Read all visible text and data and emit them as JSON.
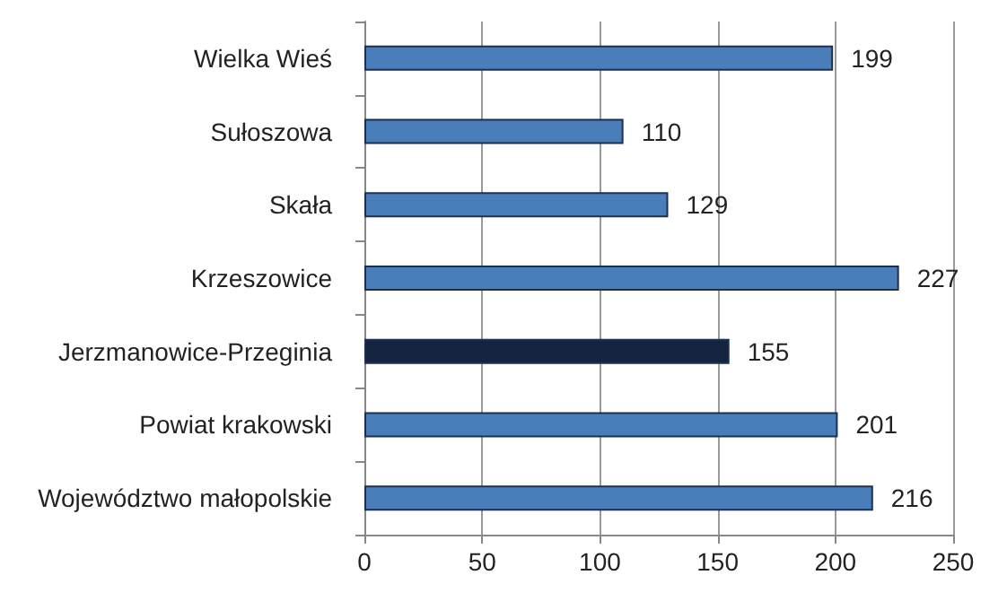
{
  "chart_data": {
    "type": "bar",
    "orientation": "horizontal",
    "categories": [
      "Wielka Wieś",
      "Sułoszowa",
      "Skała",
      "Krzeszowice",
      "Jerzmanowice-Przeginia",
      "Powiat krakowski",
      "Województwo małopolskie"
    ],
    "values": [
      199,
      110,
      129,
      227,
      155,
      201,
      216
    ],
    "colors": [
      "#4a7ebb",
      "#4a7ebb",
      "#4a7ebb",
      "#4a7ebb",
      "#14243f",
      "#4a7ebb",
      "#4a7ebb"
    ],
    "xlim": [
      0,
      250
    ],
    "xticks": [
      0,
      50,
      100,
      150,
      200,
      250
    ],
    "grid": "x",
    "data_labels": true
  }
}
